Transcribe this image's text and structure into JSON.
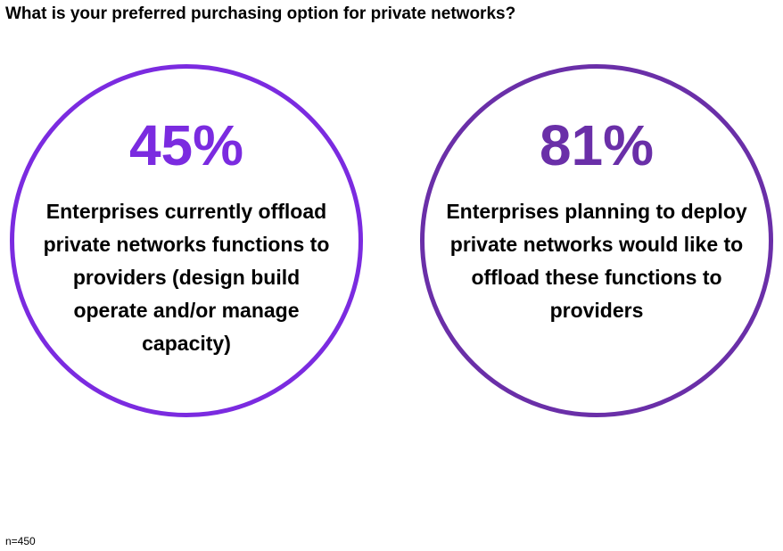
{
  "chart_data": {
    "type": "table",
    "title": "What is your preferred purchasing option for private networks?",
    "stats": [
      {
        "value": "45%",
        "percent": 45,
        "description": "Enterprises currently offload private networks functions to providers (design build operate and/or manage capacity)",
        "lines": [
          "Enterprises currently offload",
          "private networks functions to",
          "providers (design build",
          "operate and/or manage",
          "capacity)"
        ],
        "color": "#7b2be0"
      },
      {
        "value": "81%",
        "percent": 81,
        "description": "Enterprises planning to deploy private networks would like to offload these functions to providers",
        "lines": [
          "Enterprises planning to deploy",
          "private networks would like to",
          "offload these functions to",
          "providers"
        ],
        "color": "#6a2fa8"
      }
    ],
    "footnote": "n=450"
  }
}
